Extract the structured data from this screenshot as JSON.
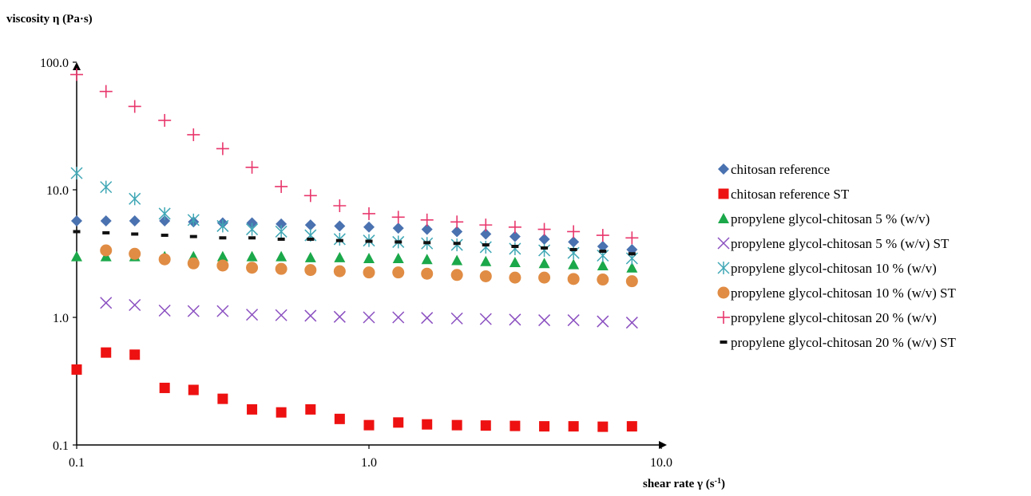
{
  "chart_data": {
    "type": "scatter",
    "title": "",
    "ylabel": "viscosity η (Pa·s)",
    "xlabel": {
      "main": "shear rate γ  (s",
      "sup": "-1",
      "close": ")"
    },
    "x_scale": "log",
    "y_scale": "log",
    "xlim": [
      0.1,
      10
    ],
    "ylim": [
      0.1,
      100
    ],
    "x_ticks": [
      "0.1",
      "1.0",
      "10.0"
    ],
    "x_tick_values": [
      0.1,
      1,
      10
    ],
    "y_ticks": [
      "0.1",
      "1.0",
      "10.0",
      "100.0"
    ],
    "y_tick_values": [
      0.1,
      1,
      10,
      100
    ],
    "grid": false,
    "legend_position": "right",
    "x": [
      0.1,
      0.126,
      0.158,
      0.2,
      0.251,
      0.316,
      0.398,
      0.501,
      0.631,
      0.794,
      1.0,
      1.26,
      1.58,
      2.0,
      2.51,
      3.16,
      3.98,
      5.01,
      6.31,
      7.94
    ],
    "series": [
      {
        "name": "chitosan reference",
        "marker": "diamond",
        "color": "#4A72B0",
        "values": [
          5.7,
          5.7,
          5.7,
          5.7,
          5.6,
          5.5,
          5.5,
          5.4,
          5.3,
          5.2,
          5.1,
          5.0,
          4.9,
          4.7,
          4.5,
          4.3,
          4.1,
          3.9,
          3.6,
          3.4
        ]
      },
      {
        "name": "chitosan reference ST",
        "marker": "square",
        "color": "#EE1111",
        "values": [
          0.39,
          0.53,
          0.51,
          0.28,
          0.27,
          0.23,
          0.19,
          0.18,
          0.19,
          0.16,
          0.143,
          0.15,
          0.145,
          0.143,
          0.142,
          0.141,
          0.14,
          0.14,
          0.139,
          0.14
        ]
      },
      {
        "name": "propylene glycol-chitosan 5 % (w/v)",
        "marker": "triangle",
        "color": "#1BA84A",
        "values": [
          3.0,
          3.0,
          3.0,
          3.0,
          3.0,
          3.0,
          3.0,
          3.0,
          2.95,
          2.95,
          2.9,
          2.9,
          2.85,
          2.8,
          2.75,
          2.7,
          2.65,
          2.6,
          2.55,
          2.45
        ]
      },
      {
        "name": "propylene glycol-chitosan 5 % (w/v) ST",
        "marker": "x",
        "color": "#8A4FC0",
        "values": [
          null,
          1.3,
          1.25,
          1.13,
          1.12,
          1.12,
          1.05,
          1.04,
          1.03,
          1.01,
          1.0,
          1.0,
          0.99,
          0.98,
          0.97,
          0.96,
          0.95,
          0.95,
          0.93,
          0.91
        ]
      },
      {
        "name": "propylene glycol-chitosan 10 % (w/v)",
        "marker": "asterisk",
        "color": "#3FA7B5",
        "values": [
          13.5,
          10.5,
          8.5,
          6.5,
          5.8,
          5.2,
          4.9,
          4.7,
          4.4,
          4.1,
          4.0,
          3.9,
          3.8,
          3.7,
          3.55,
          3.45,
          3.35,
          3.2,
          3.05,
          2.9
        ]
      },
      {
        "name": "propylene glycol-chitosan 10 % (w/v) ST",
        "marker": "circle",
        "color": "#E08C44",
        "values": [
          null,
          3.35,
          3.15,
          2.85,
          2.65,
          2.55,
          2.45,
          2.4,
          2.35,
          2.3,
          2.25,
          2.25,
          2.2,
          2.15,
          2.1,
          2.05,
          2.05,
          2.0,
          1.98,
          1.92
        ]
      },
      {
        "name": "propylene glycol-chitosan 20 % (w/v)",
        "marker": "plus",
        "color": "#E8376C",
        "values": [
          80,
          59,
          45,
          35,
          27,
          21,
          15,
          10.6,
          9.0,
          7.5,
          6.5,
          6.1,
          5.8,
          5.6,
          5.3,
          5.1,
          4.9,
          4.7,
          4.4,
          4.2
        ]
      },
      {
        "name": "propylene glycol-chitosan 20 % (w/v) ST",
        "marker": "dash",
        "color": "#111111",
        "values": [
          4.7,
          4.6,
          4.5,
          4.4,
          4.3,
          4.2,
          4.2,
          4.1,
          4.1,
          4.0,
          3.95,
          3.9,
          3.85,
          3.8,
          3.7,
          3.6,
          3.5,
          3.4,
          3.3,
          3.15
        ]
      }
    ]
  }
}
